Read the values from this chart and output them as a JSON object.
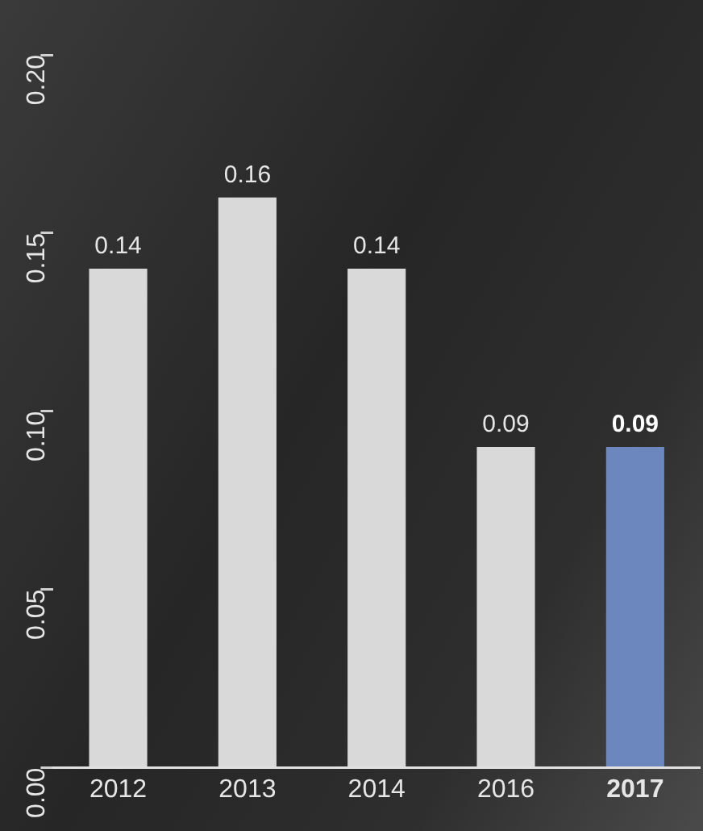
{
  "chart_data": {
    "type": "bar",
    "categories": [
      "2012",
      "2013",
      "2014",
      "2016",
      "2017"
    ],
    "values": [
      0.14,
      0.16,
      0.14,
      0.09,
      0.09
    ],
    "colors": [
      "#d9d9d9",
      "#d9d9d9",
      "#d9d9d9",
      "#d9d9d9",
      "#6b87bd"
    ],
    "ylim": [
      0,
      0.2
    ],
    "yticks": [
      {
        "value": 0,
        "label": "0.00"
      },
      {
        "value": 0.05,
        "label": "0.05"
      },
      {
        "value": 0.1,
        "label": "0.10"
      },
      {
        "value": 0.15,
        "label": "0.15"
      },
      {
        "value": 0.2,
        "label": "0.20"
      }
    ],
    "data_labels": true,
    "grid": false,
    "legend": false
  }
}
